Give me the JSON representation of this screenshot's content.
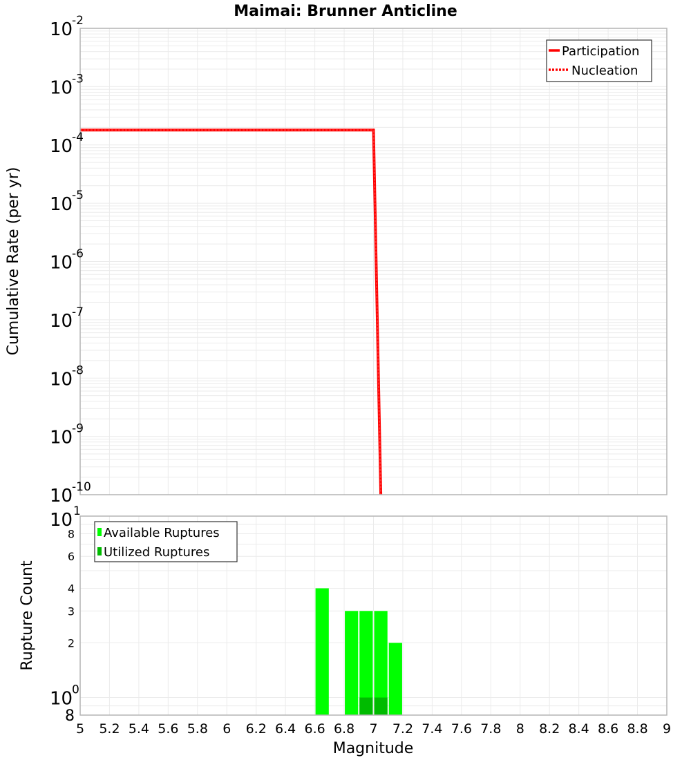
{
  "chart_data": [
    {
      "type": "line",
      "title": "Maimai: Brunner Anticline",
      "xlabel": "",
      "ylabel": "Cumulative Rate (per yr)",
      "xlim": [
        5,
        9
      ],
      "ylim": [
        1e-10,
        0.01
      ],
      "yscale": "log",
      "y_ticks": [
        "10^-2",
        "10^-3",
        "10^-4",
        "10^-5",
        "10^-6",
        "10^-7",
        "10^-8",
        "10^-9",
        "10^-10"
      ],
      "grid": true,
      "legend_position": "upper right",
      "series": [
        {
          "name": "Participation",
          "style": "solid",
          "color": "#ff0000",
          "x": [
            5.0,
            6.6,
            6.7,
            6.8,
            6.9,
            7.0,
            7.05
          ],
          "y": [
            0.00018,
            0.00018,
            0.00018,
            0.00018,
            0.00018,
            0.00018,
            1e-10
          ]
        },
        {
          "name": "Nucleation",
          "style": "dotted",
          "color": "#ff0000",
          "x": [
            5.0,
            6.6,
            6.7,
            6.8,
            6.9,
            7.0,
            7.05
          ],
          "y": [
            0.00018,
            0.00018,
            0.00018,
            0.00018,
            0.00018,
            0.00018,
            1e-10
          ]
        }
      ]
    },
    {
      "type": "bar",
      "title": "",
      "xlabel": "Magnitude",
      "ylabel": "Rupture Count",
      "xlim": [
        5,
        9
      ],
      "ylim": [
        0.8,
        10
      ],
      "yscale": "log",
      "y_ticks": [
        "8",
        "10^0",
        "2",
        "3",
        "4",
        "6",
        "8",
        "10^1"
      ],
      "x_ticks": [
        "5",
        "5.2",
        "5.4",
        "5.6",
        "5.8",
        "6",
        "6.2",
        "6.4",
        "6.6",
        "6.8",
        "7",
        "7.2",
        "7.4",
        "7.6",
        "7.8",
        "8",
        "8.2",
        "8.4",
        "8.6",
        "8.8",
        "9"
      ],
      "grid": true,
      "legend_position": "upper left",
      "categories": [
        6.65,
        6.85,
        6.95,
        7.05,
        7.15
      ],
      "series": [
        {
          "name": "Available Ruptures",
          "color": "#00ff00",
          "values": [
            4,
            3,
            3,
            3,
            2
          ]
        },
        {
          "name": "Utilized Ruptures",
          "color": "#00bb00",
          "values": [
            0,
            0,
            1,
            1,
            0
          ]
        }
      ]
    }
  ],
  "titles": {
    "main": "Maimai: Brunner Anticline",
    "top_ylabel": "Cumulative Rate (per yr)",
    "bottom_ylabel": "Rupture Count",
    "xlabel": "Magnitude"
  },
  "legend_top": {
    "participation": "Participation",
    "nucleation": "Nucleation"
  },
  "legend_bottom": {
    "available": "Available Ruptures",
    "utilized": "Utilized Ruptures"
  },
  "colors": {
    "line": "#ff0000",
    "available": "#00ff00",
    "utilized": "#00bb00",
    "grid": "#ebebeb",
    "frame": "#b4b4b4"
  }
}
